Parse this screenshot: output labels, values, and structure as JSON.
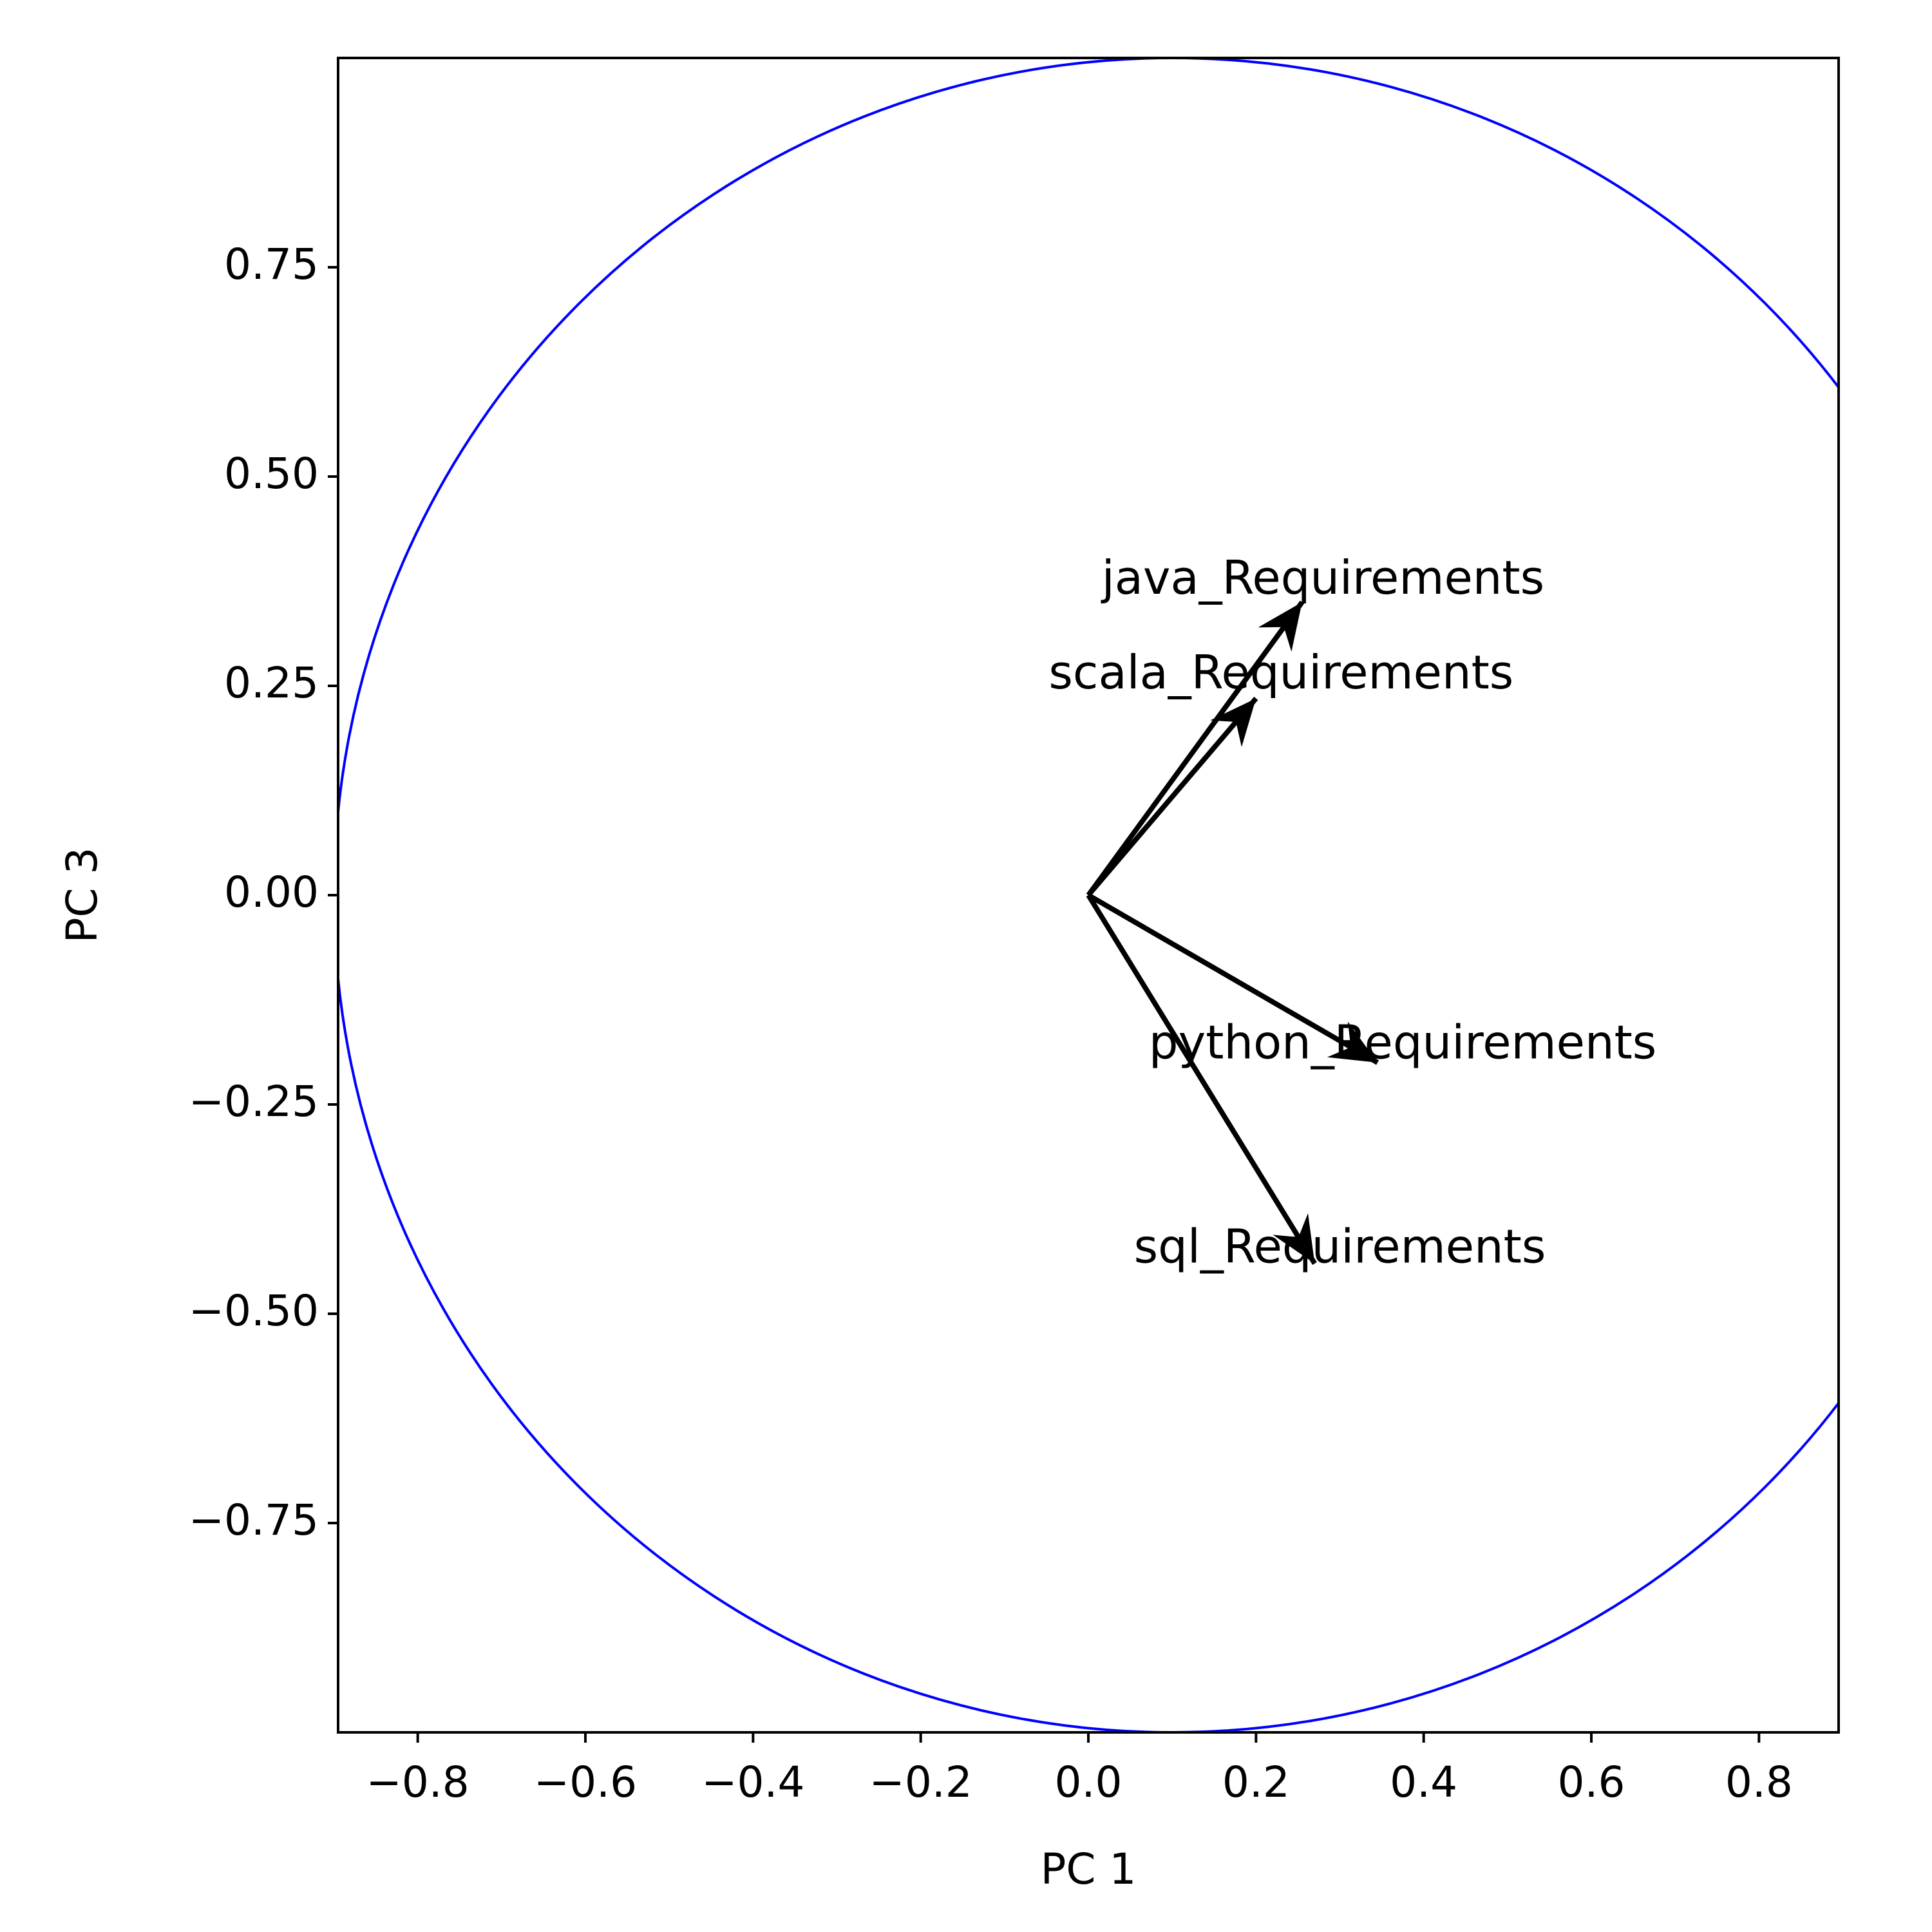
{
  "chart_data": {
    "type": "biplot",
    "xlabel": "PC 1",
    "ylabel": "PC 3",
    "xlim": [
      -0.895,
      0.895
    ],
    "ylim": [
      -1.0,
      1.0
    ],
    "xticks": [
      -0.8,
      -0.6,
      -0.4,
      -0.2,
      0.0,
      0.2,
      0.4,
      0.6,
      0.8
    ],
    "xtick_labels": [
      "−0.8",
      "−0.6",
      "−0.4",
      "−0.2",
      "0.0",
      "0.2",
      "0.4",
      "0.6",
      "0.8"
    ],
    "yticks": [
      0.75,
      0.5,
      0.25,
      0.0,
      -0.25,
      -0.5,
      -0.75
    ],
    "ytick_labels": [
      "0.75",
      "0.50",
      "0.25",
      "0.00",
      "−0.25",
      "−0.50",
      "−0.75"
    ],
    "circle": {
      "center": [
        0.1,
        0.0
      ],
      "radius": 1.0,
      "color": "#0000ff"
    },
    "arrow_color": "#000000",
    "grid": false,
    "vectors": [
      {
        "name": "java_Requirements",
        "x": 0.255,
        "y": 0.35,
        "label_x": 0.28,
        "label_y": 0.375
      },
      {
        "name": "scala_Requirements",
        "x": 0.2,
        "y": 0.235,
        "label_x": 0.23,
        "label_y": 0.262
      },
      {
        "name": "python_Requirements",
        "x": 0.345,
        "y": -0.2,
        "label_x": 0.375,
        "label_y": -0.18
      },
      {
        "name": "sql_Requirements",
        "x": 0.27,
        "y": -0.44,
        "label_x": 0.3,
        "label_y": -0.424
      }
    ]
  }
}
